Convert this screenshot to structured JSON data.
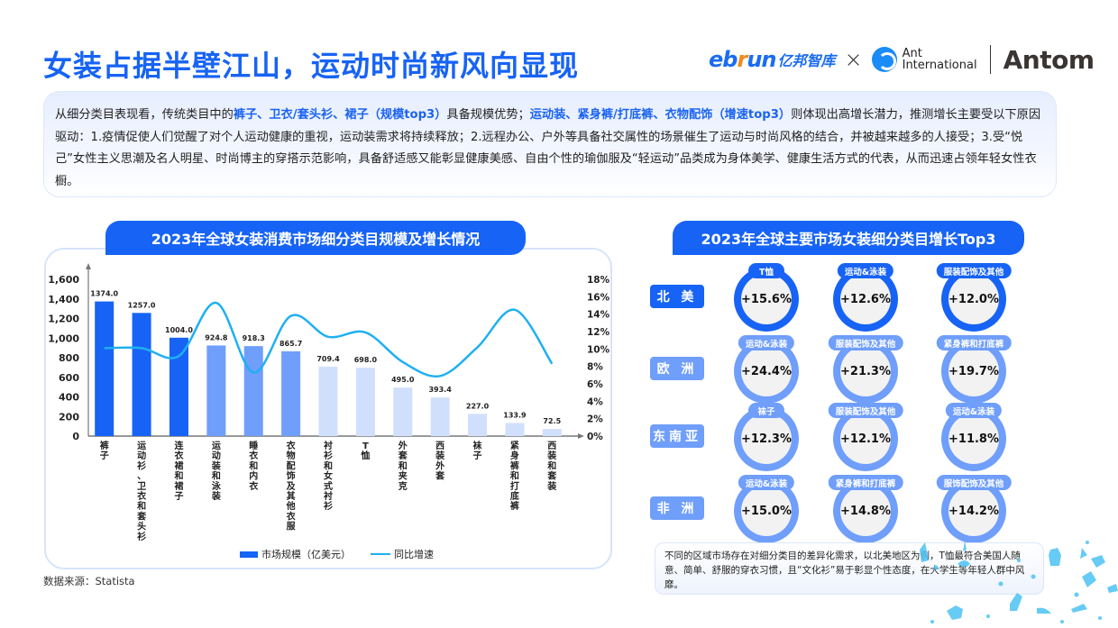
{
  "header": {
    "title": "女装占据半壁江山，运动时尚新风向显现",
    "logos": {
      "ebrun_pre": "eb",
      "ebrun_r": "r",
      "ebrun_post": "un",
      "ebrun_cn": "亿邦智库",
      "times": "×",
      "ant_line1": "Ant",
      "ant_line2": "International",
      "antom": "Antom"
    }
  },
  "summary": {
    "p1": "从细分类目表现看，传统类目中的",
    "hl1": "裤子、卫衣/套头衫、裙子（规模top3）",
    "p2": "具备规模优势；",
    "hl2": "运动装、紧身裤/打底裤、衣物配饰（增速top3）",
    "p3": "则体现出高增长潜力，推测增长主要受以下原因驱动：1.疫情促使人们觉醒了对个人运动健康的重视，运动装需求将持续释放；2.远程办公、户外等具备社交属性的场景催生了运动与时尚风格的结合，并被越来越多的人接受；3.受“悦己”女性主义思潮及名人明星、时尚博主的穿搭示范影响，具备舒适感又能彰显健康美感、自由个性的瑜伽服及“轻运动”品类成为身体美学、健康生活方式的代表，从而迅速占领年轻女性衣橱。"
  },
  "left_panel": {
    "tab_title": "2023年全球女装消费市场细分类目规模及增长情况",
    "legend": {
      "bar_label": "市场规模（亿美元）",
      "line_label": "同比增速"
    },
    "source": "数据来源：Statista"
  },
  "chart_data": {
    "type": "bar",
    "title": "2023年全球女装消费市场细分类目规模及增长情况",
    "categories": [
      "裤子",
      "运动衫、卫衣和套头衫",
      "连衣裙和裙子",
      "运动装和泳装",
      "睡衣和内衣",
      "衣物配饰及其他衣服",
      "衬衫和女式衬衫",
      "T恤",
      "外套和夹克",
      "西装外套",
      "袜子",
      "紧身裤和打底裤",
      "西装和套装"
    ],
    "series": [
      {
        "name": "市场规模（亿美元）",
        "type": "bar",
        "axis": "left",
        "values": [
          1374.0,
          1257.0,
          1004.0,
          924.8,
          918.3,
          865.7,
          709.4,
          698.0,
          495.0,
          393.4,
          227.0,
          133.9,
          72.5
        ]
      },
      {
        "name": "同比增速",
        "type": "line",
        "axis": "right",
        "values": [
          10.1,
          10.1,
          9.2,
          15.3,
          7.3,
          13.8,
          11.4,
          11.9,
          8.5,
          6.9,
          10.2,
          14.5,
          8.3
        ]
      }
    ],
    "bar_labels": [
      "1374.0",
      "1257.0",
      "1004.0",
      "924.8",
      "918.3",
      "865.7",
      "709.4",
      "698.0",
      "495.0",
      "393.4",
      "227.0",
      "133.9",
      "72.5"
    ],
    "bar_colors": [
      "#1763f5",
      "#1763f5",
      "#1763f5",
      "#6f9efb",
      "#6f9efb",
      "#6f9efb",
      "#d0e0fc",
      "#d0e0fc",
      "#d0e0fc",
      "#d0e0fc",
      "#d0e0fc",
      "#d0e0fc",
      "#d0e0fc"
    ],
    "line_color": "#1fb0f2",
    "y_left": {
      "ticks": [
        "0",
        "200",
        "400",
        "600",
        "800",
        "1,000",
        "1,200",
        "1,400",
        "1,600"
      ],
      "range": [
        0,
        1600
      ]
    },
    "y_right": {
      "ticks": [
        "0%",
        "2%",
        "4%",
        "6%",
        "8%",
        "10%",
        "12%",
        "14%",
        "16%",
        "18%"
      ],
      "range": [
        0,
        18
      ]
    },
    "legend_position": "bottom",
    "grid": false
  },
  "right_panel": {
    "tab_title": "2023年全球主要市场女装细分类目增长Top3",
    "regions": [
      {
        "name": "北 美",
        "color": "#1763f5",
        "items": [
          {
            "tag": "T恤",
            "value": "+15.6%"
          },
          {
            "tag": "运动&泳装",
            "value": "+12.6%"
          },
          {
            "tag": "服装配饰及其他",
            "value": "+12.0%"
          }
        ]
      },
      {
        "name": "欧 洲",
        "color": "#6f9efb",
        "items": [
          {
            "tag": "运动&泳装",
            "value": "+24.4%"
          },
          {
            "tag": "服装配饰及其他",
            "value": "+21.3%"
          },
          {
            "tag": "紧身裤和打底裤",
            "value": "+19.7%"
          }
        ]
      },
      {
        "name": "东南亚",
        "color": "#6f9efb",
        "items": [
          {
            "tag": "袜子",
            "value": "+12.3%"
          },
          {
            "tag": "服装配饰及其他",
            "value": "+12.1%"
          },
          {
            "tag": "运动&泳装",
            "value": "+11.8%"
          }
        ]
      },
      {
        "name": "非 洲",
        "color": "#6f9efb",
        "items": [
          {
            "tag": "运动&泳装",
            "value": "+15.0%"
          },
          {
            "tag": "紧身裤和打底裤",
            "value": "+14.8%"
          },
          {
            "tag": "服饰配饰及其他",
            "value": "+14.2%"
          }
        ]
      }
    ],
    "note": "不同的区域市场存在对细分类目的差异化需求，以北美地区为例，T恤最符合美国人随意、简单、舒服的穿衣习惯，且“文化衫”易于彰显个性态度，在大学生等年轻人群中风靡。"
  },
  "colors": {
    "brand_blue": "#1763f5",
    "light_blue": "#6f9efb",
    "pale_blue": "#d0e0fc",
    "line_cyan": "#1fb0f2"
  }
}
